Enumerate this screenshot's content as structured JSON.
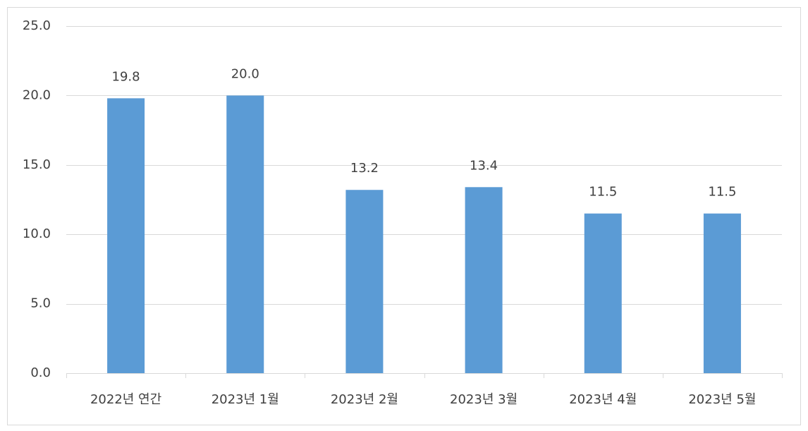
{
  "chart_data": {
    "type": "bar",
    "categories": [
      "2022년 연간",
      "2023년 1월",
      "2023년 2월",
      "2023년 3월",
      "2023년 4월",
      "2023년 5월"
    ],
    "values": [
      19.8,
      20.0,
      13.2,
      13.4,
      11.5,
      11.5
    ],
    "value_labels": [
      "19.8",
      "20.0",
      "13.2",
      "13.4",
      "11.5",
      "11.5"
    ],
    "color": "#5b9bd5",
    "ylim": [
      0,
      25
    ],
    "yticks": [
      {
        "value": 0,
        "label": "0.0"
      },
      {
        "value": 5,
        "label": "5.0"
      },
      {
        "value": 10,
        "label": "10.0"
      },
      {
        "value": 15,
        "label": "15.0"
      },
      {
        "value": 20,
        "label": "20.0"
      },
      {
        "value": 25,
        "label": "25.0"
      }
    ],
    "grid": true
  }
}
